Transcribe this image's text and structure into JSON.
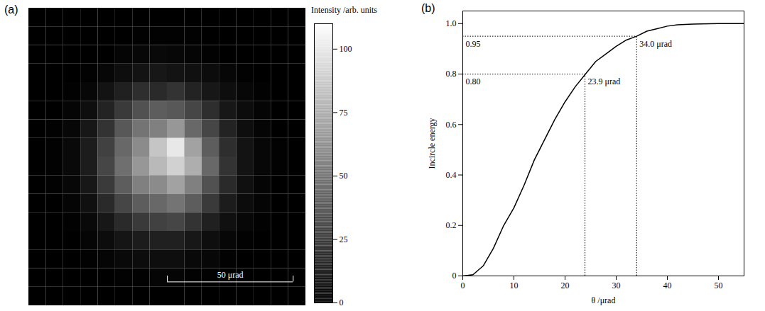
{
  "chart_data": [
    {
      "panel": "(a)",
      "type": "heatmap",
      "xlim": [
        -55,
        55
      ],
      "ylim": [
        -55,
        55
      ],
      "tick_labels": false,
      "cells": [
        [
          0,
          0,
          0,
          0,
          0,
          0,
          0,
          0,
          0,
          0,
          0,
          0,
          0,
          0,
          0,
          0
        ],
        [
          0,
          0,
          0,
          0,
          0,
          0,
          1,
          1,
          1,
          1,
          0,
          0,
          0,
          0,
          0,
          0
        ],
        [
          0,
          0,
          0,
          0,
          0,
          2,
          3,
          4,
          3,
          2,
          1,
          0,
          0,
          0,
          0,
          0
        ],
        [
          0,
          0,
          0,
          1,
          3,
          6,
          8,
          10,
          8,
          7,
          5,
          3,
          1,
          0,
          0,
          0
        ],
        [
          0,
          0,
          1,
          3,
          8,
          14,
          20,
          18,
          22,
          15,
          10,
          6,
          3,
          1,
          0,
          0
        ],
        [
          0,
          0,
          2,
          6,
          15,
          25,
          35,
          40,
          38,
          30,
          20,
          10,
          5,
          2,
          0,
          0
        ],
        [
          0,
          1,
          3,
          10,
          22,
          38,
          50,
          55,
          65,
          45,
          30,
          15,
          6,
          2,
          0,
          0
        ],
        [
          0,
          1,
          4,
          12,
          28,
          45,
          60,
          85,
          100,
          70,
          40,
          20,
          8,
          3,
          1,
          0
        ],
        [
          0,
          1,
          4,
          12,
          30,
          48,
          65,
          80,
          90,
          75,
          45,
          22,
          8,
          3,
          1,
          0
        ],
        [
          0,
          1,
          3,
          10,
          25,
          40,
          55,
          60,
          70,
          55,
          35,
          18,
          7,
          2,
          0,
          0
        ],
        [
          0,
          0,
          2,
          7,
          18,
          30,
          40,
          45,
          50,
          40,
          25,
          12,
          5,
          2,
          0,
          0
        ],
        [
          0,
          0,
          1,
          4,
          10,
          18,
          25,
          28,
          30,
          22,
          14,
          7,
          3,
          1,
          0,
          0
        ],
        [
          0,
          0,
          0,
          2,
          5,
          9,
          12,
          14,
          14,
          10,
          6,
          3,
          1,
          0,
          0,
          0
        ],
        [
          0,
          0,
          0,
          1,
          2,
          4,
          5,
          6,
          6,
          4,
          3,
          1,
          0,
          0,
          0,
          0
        ],
        [
          0,
          0,
          0,
          0,
          0,
          1,
          1,
          2,
          2,
          1,
          1,
          0,
          0,
          0,
          0,
          0
        ],
        [
          0,
          0,
          0,
          0,
          0,
          0,
          0,
          0,
          0,
          0,
          0,
          0,
          0,
          0,
          0,
          0
        ]
      ],
      "colorbar": {
        "label": "Intensity /arb. units",
        "range": [
          0,
          110
        ],
        "ticks": [
          0,
          25,
          50,
          75,
          100
        ]
      },
      "scale_bar": {
        "value": 50,
        "label": "50 μrad"
      }
    },
    {
      "panel": "(b)",
      "type": "line",
      "color": "#000000",
      "line_style": "solid",
      "xlabel": "θ /μrad",
      "ylabel": "Incircle energy",
      "x": [
        0,
        2,
        4,
        6,
        8,
        10,
        12,
        14,
        16,
        18,
        20,
        22,
        24,
        26,
        28,
        30,
        32,
        34,
        36,
        38,
        40,
        42,
        45,
        50,
        55
      ],
      "values": [
        0,
        0.005,
        0.04,
        0.11,
        0.2,
        0.27,
        0.36,
        0.46,
        0.54,
        0.62,
        0.69,
        0.75,
        0.8,
        0.85,
        0.88,
        0.91,
        0.935,
        0.95,
        0.97,
        0.98,
        0.99,
        0.995,
        0.998,
        1.0,
        1.0
      ],
      "xlim": [
        0,
        55
      ],
      "ylim": [
        0,
        1.05
      ],
      "xticks": [
        0,
        10,
        20,
        30,
        40,
        50
      ],
      "yticks": [
        0,
        0.2,
        0.4,
        0.6,
        0.8,
        {
          "value": 1,
          "label": "1.0"
        }
      ],
      "annotations": [
        {
          "x": 34.0,
          "y": 0.95,
          "x_label": "34.0 μrad",
          "y_label": "0.95"
        },
        {
          "x": 23.9,
          "y": 0.8,
          "x_label": "23.9 μrad",
          "y_label": "0.80"
        }
      ]
    }
  ]
}
